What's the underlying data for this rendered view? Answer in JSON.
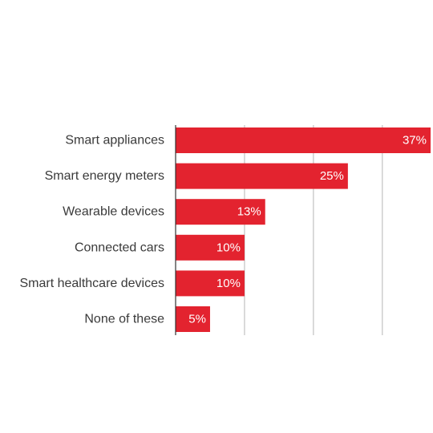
{
  "chart_data": {
    "type": "bar",
    "orientation": "horizontal",
    "categories": [
      "Smart appliances",
      "Smart energy meters",
      "Wearable devices",
      "Connected cars",
      "Smart healthcare devices",
      "None of these"
    ],
    "values": [
      37,
      25,
      13,
      10,
      10,
      5
    ],
    "value_labels": [
      "37%",
      "25%",
      "13%",
      "10%",
      "10%",
      "5%"
    ],
    "xlim": [
      0,
      37
    ],
    "x_gridlines": [
      10,
      20,
      30
    ],
    "grid": true,
    "title": "",
    "xlabel": "",
    "ylabel": "",
    "bar_color": "#e3232f"
  }
}
